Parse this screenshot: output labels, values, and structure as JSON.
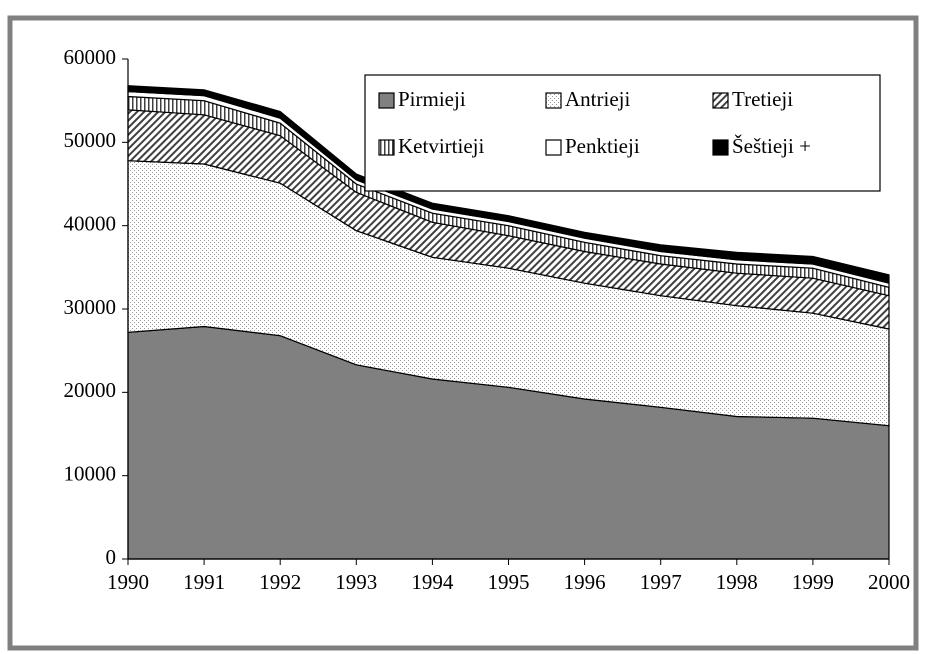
{
  "chart_data": {
    "type": "stacked_area",
    "x": [
      1990,
      1991,
      1992,
      1993,
      1994,
      1995,
      1996,
      1997,
      1998,
      1999,
      2000
    ],
    "xlim": [
      1990,
      2000
    ],
    "xticks": [
      1990,
      1991,
      1992,
      1993,
      1994,
      1995,
      1996,
      1997,
      1998,
      1999,
      2000
    ],
    "ylim": [
      0,
      60000
    ],
    "yticks": [
      0,
      10000,
      20000,
      30000,
      40000,
      50000,
      60000
    ],
    "legend": "top-right",
    "series": [
      {
        "name": "Pirmieji",
        "color": "#808080",
        "pattern": "solid",
        "values": [
          27200,
          27900,
          26800,
          23300,
          21600,
          20600,
          19200,
          18200,
          17100,
          16900,
          16000
        ]
      },
      {
        "name": "Antrieji",
        "color": "#c8c8c8",
        "pattern": "dots",
        "values": [
          20600,
          19500,
          18300,
          16100,
          14600,
          14300,
          13900,
          13400,
          13300,
          12600,
          11600
        ]
      },
      {
        "name": "Tretieji",
        "color": "#404040",
        "pattern": "diagonal",
        "values": [
          6100,
          5900,
          5700,
          4600,
          4200,
          3900,
          3800,
          3800,
          3900,
          4200,
          4000
        ]
      },
      {
        "name": "Ketvirtieji",
        "color": "#404040",
        "pattern": "vertical",
        "values": [
          1600,
          1700,
          1500,
          1000,
          1100,
          1200,
          1100,
          1000,
          1100,
          1200,
          1000
        ]
      },
      {
        "name": "Penktieji",
        "color": "#ffffff",
        "pattern": "solid",
        "values": [
          600,
          600,
          600,
          500,
          500,
          500,
          500,
          500,
          500,
          500,
          500
        ]
      },
      {
        "name": "Šeštieji +",
        "color": "#000000",
        "pattern": "solid",
        "values": [
          700,
          700,
          800,
          700,
          700,
          700,
          700,
          800,
          900,
          900,
          1000
        ]
      }
    ]
  }
}
